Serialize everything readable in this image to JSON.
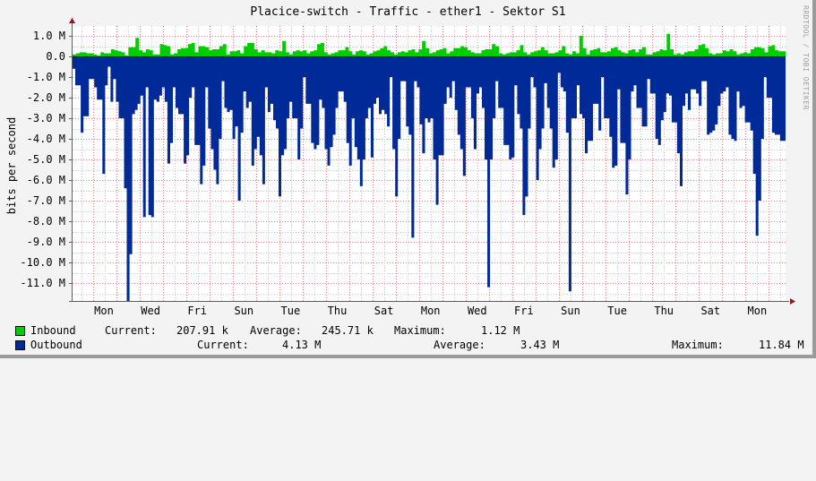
{
  "title": "Placice-switch - Traffic - ether1 - Sektor S1",
  "watermark": "RRDTOOL / TOBI OETIKER",
  "colors": {
    "background": "#f3f3f3",
    "plot_background": "#ffffff",
    "inbound": "#00cc00",
    "outbound": "#002a97",
    "major_grid": "#e08080",
    "minor_grid": "#c8c8c8",
    "axis": "#606060",
    "arrow": "#8b1a1a"
  },
  "legend": {
    "inbound": {
      "label": "Inbound",
      "current_label": "Current:",
      "current": "207.91 k",
      "average_label": "Average:",
      "average": "245.71 k",
      "maximum_label": "Maximum:",
      "maximum": "1.12 M"
    },
    "outbound": {
      "label": "Outbound",
      "current_label": "Current:",
      "current": "4.13 M",
      "average_label": "Average:",
      "average": "3.43 M",
      "maximum_label": "Maximum:",
      "maximum": "11.84 M"
    }
  },
  "chart_data": {
    "type": "area",
    "title": "Placice-switch - Traffic - ether1 - Sektor S1",
    "xlabel": "",
    "ylabel": "bits per second",
    "ylim": [
      -11.9,
      1.0
    ],
    "y_unit": "M",
    "y_ticks": [
      "1.0 M",
      "0.0",
      "-1.0 M",
      "-2.0 M",
      "-3.0 M",
      "-4.0 M",
      "-5.0 M",
      "-6.0 M",
      "-7.0 M",
      "-8.0 M",
      "-9.0 M",
      "-10.0 M",
      "-11.0 M"
    ],
    "x_ticks": [
      "Mon",
      "Wed",
      "Fri",
      "Sun",
      "Tue",
      "Thu",
      "Sat",
      "Mon",
      "Wed",
      "Fri",
      "Sun",
      "Tue",
      "Thu",
      "Sat",
      "Mon"
    ],
    "grid": true,
    "legend_position": "bottom",
    "series": [
      {
        "name": "Inbound",
        "color": "#00cc00",
        "note": "plotted above zero; values in Mbit/s, one sample per 4px (~199 samples over ~30 days)",
        "values": [
          0.1,
          0.15,
          0.2,
          0.2,
          0.15,
          0.15,
          0.1,
          0.05,
          0.2,
          0.15,
          0.15,
          0.35,
          0.3,
          0.25,
          0.2,
          0.05,
          0.45,
          0.45,
          0.9,
          0.3,
          0.2,
          0.35,
          0.3,
          0.1,
          0.1,
          0.6,
          0.55,
          0.5,
          0.1,
          0.15,
          0.35,
          0.4,
          0.4,
          0.6,
          0.65,
          0.2,
          0.5,
          0.5,
          0.45,
          0.3,
          0.35,
          0.35,
          0.5,
          0.6,
          0.1,
          0.25,
          0.25,
          0.3,
          0.15,
          0.5,
          0.65,
          0.65,
          0.35,
          0.2,
          0.3,
          0.2,
          0.2,
          0.15,
          0.3,
          0.25,
          0.75,
          0.2,
          0.1,
          0.25,
          0.3,
          0.25,
          0.3,
          0.15,
          0.25,
          0.3,
          0.6,
          0.65,
          0.2,
          0.1,
          0.15,
          0.2,
          0.3,
          0.3,
          0.45,
          0.25,
          0.1,
          0.25,
          0.3,
          0.25,
          0.1,
          0.15,
          0.25,
          0.3,
          0.4,
          0.5,
          0.3,
          0.2,
          0.1,
          0.2,
          0.25,
          0.2,
          0.3,
          0.35,
          0.2,
          0.35,
          0.75,
          0.4,
          0.15,
          0.2,
          0.3,
          0.35,
          0.4,
          0.15,
          0.25,
          0.4,
          0.4,
          0.5,
          0.45,
          0.3,
          0.2,
          0.15,
          0.15,
          0.3,
          0.35,
          0.35,
          0.6,
          0.5,
          0.15,
          0.1,
          0.15,
          0.2,
          0.2,
          0.3,
          0.55,
          0.2,
          0.1,
          0.2,
          0.25,
          0.3,
          0.45,
          0.3,
          0.15,
          0.15,
          0.2,
          0.3,
          0.5,
          0.15,
          0.1,
          0.25,
          0.15,
          1.0,
          0.4,
          0.1,
          0.3,
          0.35,
          0.4,
          0.2,
          0.2,
          0.25,
          0.4,
          0.45,
          0.3,
          0.2,
          0.15,
          0.3,
          0.35,
          0.2,
          0.35,
          0.45,
          0.1,
          0.1,
          0.2,
          0.25,
          0.35,
          0.3,
          1.1,
          0.35,
          0.1,
          0.15,
          0.1,
          0.2,
          0.25,
          0.25,
          0.35,
          0.55,
          0.6,
          0.4,
          0.15,
          0.1,
          0.15,
          0.15,
          0.3,
          0.25,
          0.35,
          0.25,
          0.1,
          0.15,
          0.2,
          0.15,
          0.35,
          0.45,
          0.45,
          0.4,
          0.2,
          0.5,
          0.55,
          0.3,
          0.25,
          0.25
        ]
      },
      {
        "name": "Outbound",
        "color": "#002a97",
        "note": "plotted below zero (negated); values in Mbit/s",
        "values": [
          0.6,
          1.4,
          1.4,
          3.7,
          2.9,
          2.9,
          1.1,
          1.1,
          1.5,
          2.1,
          2.1,
          5.7,
          1.4,
          0.5,
          2.2,
          1.1,
          2.2,
          3.0,
          3.0,
          6.4,
          11.9,
          9.6,
          2.8,
          2.6,
          2.3,
          1.9,
          7.8,
          1.5,
          7.7,
          7.8,
          2.1,
          2.2,
          1.9,
          1.5,
          2.2,
          5.2,
          4.2,
          1.5,
          2.5,
          2.8,
          2.8,
          5.2,
          4.8,
          2.0,
          1.5,
          4.3,
          4.3,
          6.2,
          5.3,
          1.5,
          3.5,
          4.5,
          5.5,
          6.2,
          4.0,
          1.2,
          2.5,
          2.7,
          2.6,
          4.0,
          3.4,
          7.0,
          3.7,
          1.7,
          2.5,
          2.2,
          5.3,
          4.5,
          3.9,
          4.8,
          6.2,
          1.5,
          2.7,
          2.3,
          3.1,
          3.5,
          6.8,
          4.8,
          4.5,
          3.0,
          2.2,
          3.0,
          3.0,
          5.0,
          3.5,
          1.0,
          2.3,
          2.3,
          4.2,
          4.5,
          4.3,
          2.1,
          2.5,
          4.5,
          5.3,
          4.4,
          3.8,
          2.5,
          1.7,
          1.7,
          2.2,
          4.2,
          5.3,
          3.0,
          4.4,
          5.0,
          6.3,
          5.0,
          3.0,
          2.5,
          4.9,
          2.3,
          2.0,
          2.8,
          2.6,
          2.8,
          3.4,
          1.0,
          4.5,
          6.8,
          4.0,
          1.2,
          1.2,
          3.4,
          3.8,
          8.8,
          1.2,
          1.5,
          3.3,
          4.7,
          3.0,
          3.2,
          3.0,
          5.0,
          7.2,
          4.8,
          4.8,
          2.3,
          1.5,
          2.0,
          1.2,
          2.6,
          3.8,
          4.5,
          5.8,
          1.5,
          1.5,
          3.0,
          4.5,
          1.8,
          1.5,
          2.5,
          5.0,
          11.2,
          5.0,
          3.0,
          1.2,
          2.5,
          2.5,
          4.3,
          4.3,
          5.0,
          4.9,
          1.4,
          2.8,
          3.5,
          7.7,
          6.8,
          3.5,
          1.0,
          1.5,
          6.0,
          4.5,
          3.5,
          1.3,
          2.5,
          3.5,
          5.4,
          5.0,
          0.8,
          1.5,
          1.7,
          3.7,
          11.4,
          3.0,
          3.0,
          1.4,
          2.8,
          3.0,
          4.7,
          4.1,
          4.1,
          2.3,
          2.3,
          3.6,
          1.0,
          3.0,
          3.0,
          3.9,
          5.4,
          5.3,
          1.6,
          4.2,
          4.2,
          6.7,
          5.0,
          1.7,
          1.4,
          2.5,
          2.5,
          3.4,
          3.4,
          1.1,
          1.8,
          1.8,
          4.0,
          4.3,
          3.1,
          2.7,
          1.8,
          1.9,
          3.2,
          3.2,
          4.7,
          6.3,
          2.4,
          1.8,
          2.6,
          1.6,
          1.6,
          1.8,
          2.4,
          1.2,
          1.2,
          3.8,
          3.7,
          3.6,
          3.3,
          2.4,
          1.8,
          1.7,
          1.5,
          3.8,
          4.0,
          4.1,
          1.7,
          2.5,
          2.4,
          3.2,
          3.2,
          3.6,
          5.7,
          8.7,
          7.0,
          4.0,
          1.0,
          2.0,
          2.0,
          3.7,
          3.8,
          3.8,
          4.1,
          4.1
        ]
      }
    ]
  }
}
